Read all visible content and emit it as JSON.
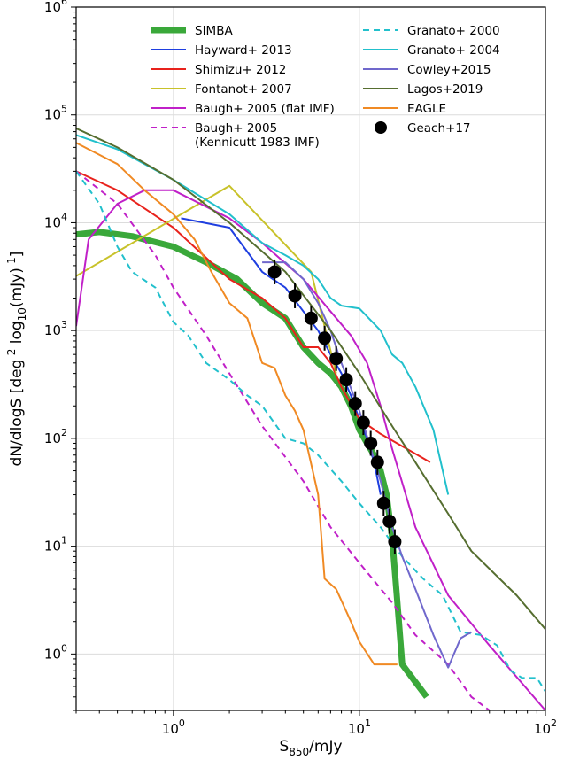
{
  "chart_data": {
    "type": "line",
    "xlabel": "S$_{850}$/mJy",
    "ylabel": "dN/dlogS [deg$^{-2}$ log$_{10}$(mJy)$^{-1}$]",
    "x_scale": "log",
    "y_scale": "log",
    "xlim": [
      0.3,
      100
    ],
    "ylim": [
      0.3,
      1000000
    ],
    "x_tick_labels": [
      "10^0",
      "10^1",
      "10^2"
    ],
    "y_tick_labels": [
      "10^0",
      "10^1",
      "10^2",
      "10^3",
      "10^4",
      "10^5",
      "10^6"
    ],
    "grid": true,
    "legend_position": "top",
    "series": [
      {
        "name": "SIMBA",
        "style": "solid-thick",
        "color": "#3aa83a",
        "x": [
          0.3,
          0.4,
          0.6,
          1.0,
          1.5,
          2.2,
          3.0,
          4.0,
          5.0,
          6.0,
          7.0,
          8.0,
          9.0,
          10.0,
          11.0,
          12.0,
          13.0,
          14.0,
          15.0,
          16.0,
          17.0,
          20.0,
          23.0
        ],
        "y": [
          7800,
          8200,
          7500,
          6000,
          4300,
          3000,
          1800,
          1300,
          700,
          500,
          400,
          300,
          200,
          120,
          90,
          70,
          50,
          30,
          12,
          3,
          0.8,
          0.55,
          0.4
        ]
      },
      {
        "name": "Hayward+ 2013",
        "style": "solid",
        "color": "#1f3fe0",
        "x": [
          1.1,
          2.0,
          3.0,
          4.0,
          5.0,
          6.0,
          7.0,
          8.0,
          9.0,
          10.0,
          11.0,
          12.0,
          13.0
        ],
        "y": [
          11000,
          9000,
          3500,
          2500,
          1500,
          1000,
          600,
          400,
          250,
          150,
          100,
          60,
          30
        ]
      },
      {
        "name": "Shimizu+ 2012",
        "style": "solid",
        "color": "#e8221c",
        "x": [
          0.3,
          0.5,
          1.0,
          2.0,
          3.0,
          4.0,
          5.0,
          6.0,
          7.0,
          8.0,
          10.0,
          13.0,
          18.0,
          24.0
        ],
        "y": [
          30000,
          20000,
          9000,
          3000,
          2000,
          1300,
          700,
          700,
          500,
          300,
          150,
          110,
          80,
          60
        ]
      },
      {
        "name": "Fontanot+ 2007",
        "style": "solid",
        "color": "#c8c22a",
        "x": [
          0.3,
          2.0,
          5.5,
          7.5
        ],
        "y": [
          3200,
          22000,
          3500,
          400
        ]
      },
      {
        "name": "Baugh+ 2005 (flat IMF)",
        "style": "solid",
        "color": "#c020c8",
        "x": [
          0.3,
          0.35,
          0.5,
          0.7,
          1.0,
          2.0,
          3.0,
          5.0,
          7.0,
          9.0,
          11.0,
          13.0,
          15.0,
          20.0,
          30.0,
          50.0,
          100.0
        ],
        "y": [
          1100,
          7000,
          15000,
          20000,
          20000,
          11000,
          6500,
          3000,
          1500,
          900,
          500,
          200,
          80,
          15,
          3.5,
          1.2,
          0.3
        ]
      },
      {
        "name": "Baugh+ 2005\n(Kennicutt 1983 IMF)",
        "style": "dashed",
        "color": "#c020c8",
        "x": [
          0.3,
          0.5,
          0.8,
          1.0,
          1.5,
          2.0,
          3.0,
          5.0,
          7.0,
          10.0,
          15.0,
          20.0,
          30.0,
          40.0,
          50.0
        ],
        "y": [
          30000,
          15000,
          5000,
          2500,
          900,
          400,
          130,
          40,
          15,
          7,
          3,
          1.5,
          0.8,
          0.4,
          0.3
        ]
      },
      {
        "name": "Granato+ 2000",
        "style": "dashed",
        "color": "#22c0cc",
        "x": [
          0.3,
          0.4,
          0.5,
          0.6,
          0.8,
          1.0,
          1.2,
          1.5,
          2.0,
          2.5,
          3.0,
          4.0,
          5.0,
          6.0,
          8.0,
          10.0,
          13.0,
          17.0,
          22.0,
          28.0,
          35.0,
          45.0,
          55.0,
          65.0,
          75.0,
          90.0,
          100.0
        ],
        "y": [
          30000,
          15000,
          6000,
          3500,
          2500,
          1200,
          900,
          500,
          350,
          250,
          200,
          100,
          90,
          70,
          40,
          25,
          15,
          8,
          5,
          3.5,
          1.6,
          1.5,
          1.2,
          0.7,
          0.6,
          0.6,
          0.45
        ]
      },
      {
        "name": "Granato+ 2004",
        "style": "solid",
        "color": "#22c0cc",
        "x": [
          0.3,
          0.5,
          1.0,
          2.0,
          3.0,
          4.0,
          5.0,
          6.0,
          7.0,
          8.0,
          10.0,
          13.0,
          15.0,
          17.0,
          20.0,
          25.0,
          30.0
        ],
        "y": [
          65000,
          48000,
          25000,
          12000,
          6500,
          5000,
          4000,
          3000,
          2000,
          1700,
          1600,
          1000,
          600,
          500,
          300,
          120,
          30
        ]
      },
      {
        "name": "Cowley+2015",
        "style": "solid",
        "color": "#7068cc",
        "x": [
          3.0,
          4.0,
          5.0,
          6.0,
          7.0,
          8.0,
          10.0,
          13.0,
          15.0,
          17.0,
          20.0,
          25.0,
          30.0,
          35.0,
          40.0
        ],
        "y": [
          4300,
          4300,
          3000,
          1800,
          1000,
          500,
          180,
          40,
          15,
          8,
          4,
          1.5,
          0.75,
          1.4,
          1.6
        ]
      },
      {
        "name": "Lagos+2019",
        "style": "solid",
        "color": "#566e30",
        "x": [
          0.3,
          0.5,
          1.0,
          2.0,
          4.0,
          7.0,
          10.0,
          15.0,
          20.0,
          30.0,
          40.0,
          70.0,
          100.0
        ],
        "y": [
          75000,
          50000,
          25000,
          10000,
          3500,
          1000,
          400,
          130,
          60,
          20,
          9,
          3.5,
          1.7
        ]
      },
      {
        "name": "EAGLE",
        "style": "solid",
        "color": "#f08a24",
        "x": [
          0.3,
          0.5,
          0.7,
          1.0,
          1.3,
          1.6,
          2.0,
          2.5,
          3.0,
          3.5,
          4.0,
          4.5,
          5.0,
          6.0,
          6.5,
          7.5,
          9.0,
          10.0,
          12.0,
          14.0,
          16.0
        ],
        "y": [
          55000,
          35000,
          20000,
          12000,
          7000,
          3500,
          1800,
          1300,
          500,
          450,
          250,
          180,
          120,
          30,
          5,
          4,
          2,
          1.3,
          0.8,
          0.8,
          0.8
        ]
      },
      {
        "name": "Geach+17",
        "style": "points",
        "color": "#000000",
        "x": [
          3.5,
          4.5,
          5.5,
          6.5,
          7.5,
          8.5,
          9.5,
          10.5,
          11.5,
          12.5,
          13.5,
          14.5,
          15.5
        ],
        "y": [
          3500,
          2100,
          1300,
          850,
          550,
          350,
          210,
          140,
          90,
          60,
          25,
          17,
          11
        ]
      }
    ]
  }
}
